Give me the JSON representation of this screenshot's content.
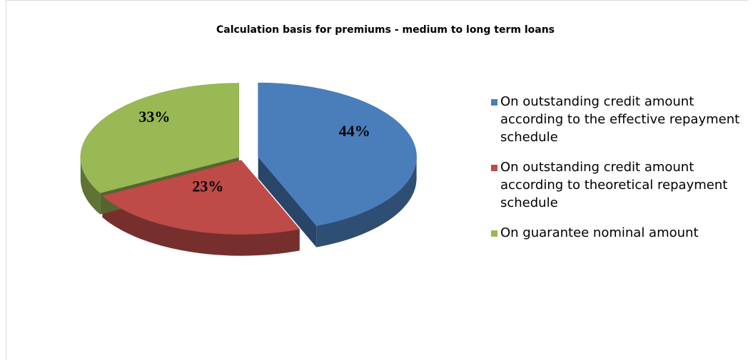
{
  "chart_data": {
    "type": "pie",
    "title": "Calculation basis for premiums - medium to long term loans",
    "categories": [
      "On outstanding credit amount according to the effective repayment schedule",
      "On outstanding credit amount according to theoretical repayment schedule",
      "On guarantee nominal amount"
    ],
    "values": [
      44,
      23,
      33
    ],
    "value_labels": [
      "44%",
      "23%",
      "33%"
    ],
    "colors": [
      "#4a7ebb",
      "#be4b48",
      "#98b954"
    ],
    "legend": "right"
  }
}
